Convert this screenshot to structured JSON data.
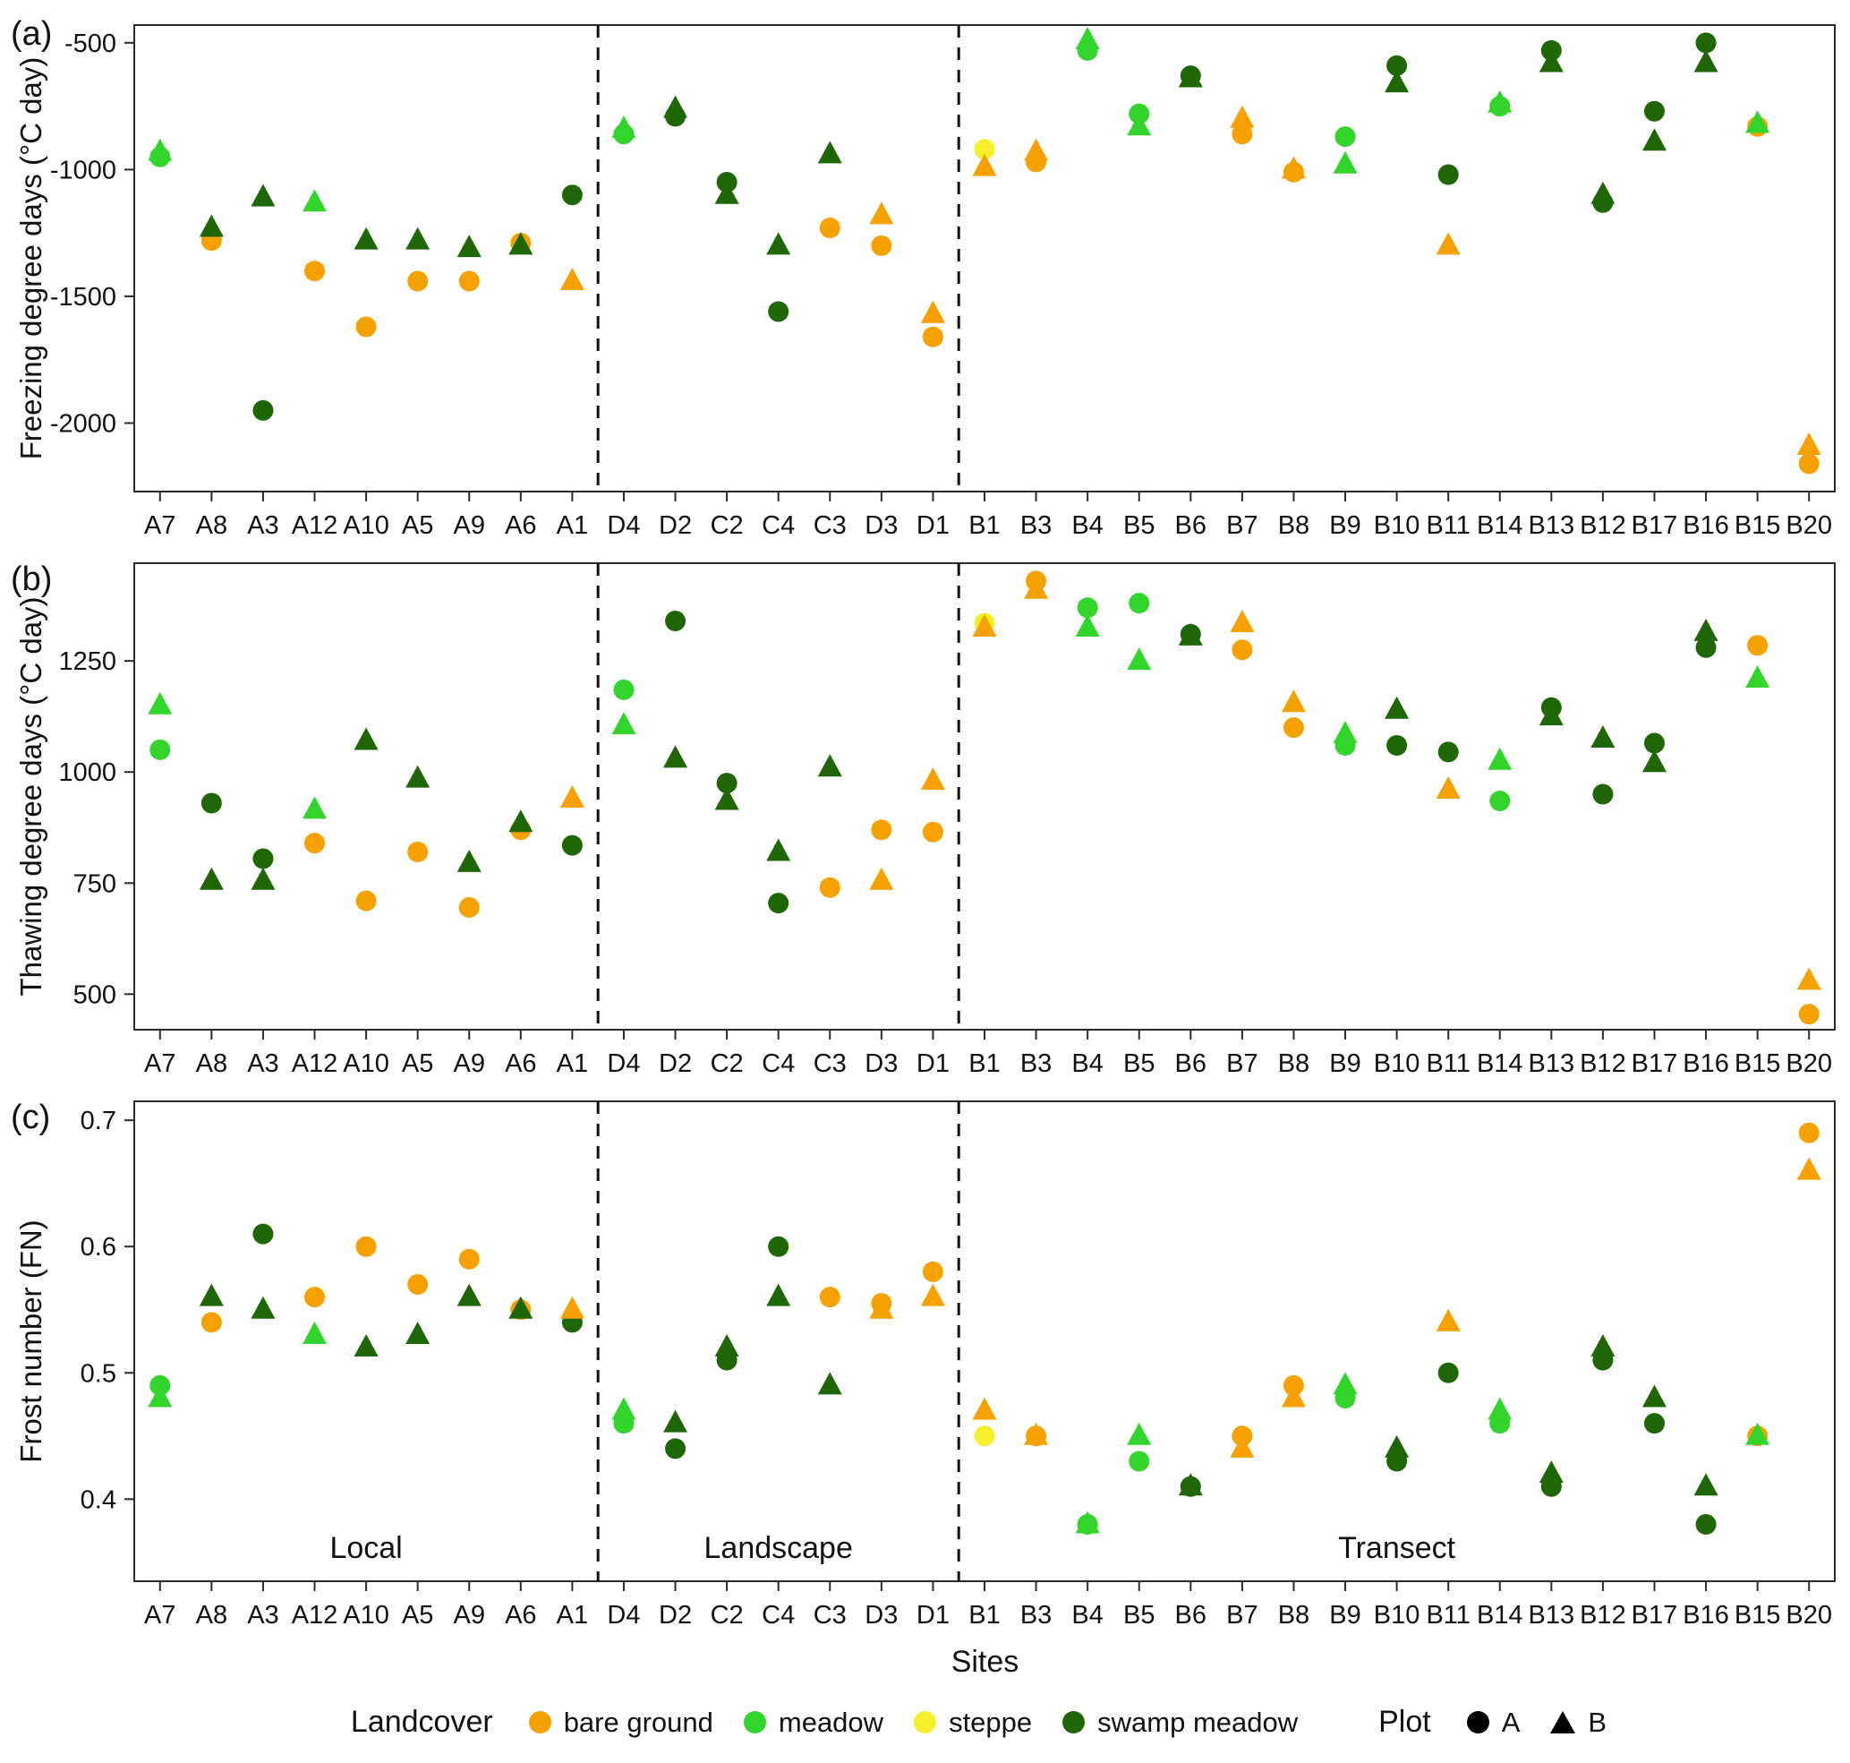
{
  "figure": {
    "xlabel": "Sites",
    "sites": [
      "A7",
      "A8",
      "A3",
      "A12",
      "A10",
      "A5",
      "A9",
      "A6",
      "A1",
      "D4",
      "D2",
      "C2",
      "C4",
      "C3",
      "D3",
      "D1",
      "B1",
      "B3",
      "B4",
      "B5",
      "B6",
      "B7",
      "B8",
      "B9",
      "B10",
      "B11",
      "B14",
      "B13",
      "B12",
      "B17",
      "B16",
      "B15",
      "B20"
    ],
    "separators_after": [
      "A1",
      "D1"
    ],
    "groups": [
      {
        "label": "Local",
        "from": 0,
        "to": 8
      },
      {
        "label": "Landscape",
        "from": 9,
        "to": 15
      },
      {
        "label": "Transect",
        "from": 16,
        "to": 32
      }
    ],
    "landcover_codes": {
      "bg": "bare ground",
      "m": "meadow",
      "st": "steppe",
      "sm": "swamp meadow"
    },
    "colors": {
      "bare ground": "#F5A100",
      "meadow": "#33D42C",
      "steppe": "#F5F02B",
      "swamp meadow": "#1E6606"
    },
    "legend": {
      "landcover_title": "Landcover",
      "landcover_items": [
        "bare ground",
        "meadow",
        "steppe",
        "swamp meadow"
      ],
      "plot_title": "Plot",
      "plot_items": [
        {
          "label": "A",
          "shape": "circle"
        },
        {
          "label": "B",
          "shape": "triangle"
        }
      ]
    }
  },
  "point_format": [
    "site",
    "plot",
    "landcover_code",
    "value"
  ],
  "chart_data": [
    {
      "type": "scatter",
      "id": "a",
      "tag": "(a)",
      "ylabel": "Freezing degree days (°C day)",
      "yticks": [
        -500,
        -1000,
        -1500,
        -2000
      ],
      "ytick_labels": [
        "-500",
        "-1000",
        "-1500",
        "-2000"
      ],
      "ylim": [
        -2270,
        -430
      ],
      "group_labels": false,
      "points": [
        [
          "A7",
          "A",
          "m",
          -950
        ],
        [
          "A7",
          "B",
          "m",
          -930
        ],
        [
          "A8",
          "A",
          "bg",
          -1280
        ],
        [
          "A8",
          "B",
          "sm",
          -1230
        ],
        [
          "A3",
          "A",
          "sm",
          -1950
        ],
        [
          "A3",
          "B",
          "sm",
          -1110
        ],
        [
          "A12",
          "A",
          "bg",
          -1400
        ],
        [
          "A12",
          "B",
          "m",
          -1130
        ],
        [
          "A10",
          "A",
          "bg",
          -1620
        ],
        [
          "A10",
          "B",
          "sm",
          -1280
        ],
        [
          "A5",
          "A",
          "bg",
          -1440
        ],
        [
          "A5",
          "B",
          "sm",
          -1280
        ],
        [
          "A9",
          "A",
          "bg",
          -1440
        ],
        [
          "A9",
          "B",
          "sm",
          -1310
        ],
        [
          "A6",
          "A",
          "bg",
          -1290
        ],
        [
          "A6",
          "B",
          "sm",
          -1300
        ],
        [
          "A1",
          "A",
          "sm",
          -1100
        ],
        [
          "A1",
          "B",
          "bg",
          -1440
        ],
        [
          "D4",
          "A",
          "m",
          -860
        ],
        [
          "D4",
          "B",
          "m",
          -840
        ],
        [
          "D2",
          "A",
          "sm",
          -790
        ],
        [
          "D2",
          "B",
          "sm",
          -760
        ],
        [
          "C2",
          "A",
          "sm",
          -1050
        ],
        [
          "C2",
          "B",
          "sm",
          -1100
        ],
        [
          "C4",
          "A",
          "sm",
          -1560
        ],
        [
          "C4",
          "B",
          "sm",
          -1300
        ],
        [
          "C3",
          "A",
          "bg",
          -1230
        ],
        [
          "C3",
          "B",
          "sm",
          -940
        ],
        [
          "D3",
          "A",
          "bg",
          -1300
        ],
        [
          "D3",
          "B",
          "bg",
          -1180
        ],
        [
          "D1",
          "A",
          "bg",
          -1660
        ],
        [
          "D1",
          "B",
          "bg",
          -1570
        ],
        [
          "B1",
          "A",
          "st",
          -920
        ],
        [
          "B1",
          "B",
          "bg",
          -990
        ],
        [
          "B3",
          "A",
          "bg",
          -970
        ],
        [
          "B3",
          "B",
          "bg",
          -930
        ],
        [
          "B4",
          "A",
          "m",
          -530
        ],
        [
          "B4",
          "B",
          "m",
          -490
        ],
        [
          "B5",
          "A",
          "m",
          -780
        ],
        [
          "B5",
          "B",
          "m",
          -830
        ],
        [
          "B6",
          "A",
          "sm",
          -630
        ],
        [
          "B6",
          "B",
          "sm",
          -640
        ],
        [
          "B7",
          "A",
          "bg",
          -860
        ],
        [
          "B7",
          "B",
          "bg",
          -800
        ],
        [
          "B8",
          "A",
          "bg",
          -1010
        ],
        [
          "B8",
          "B",
          "bg",
          -1000
        ],
        [
          "B9",
          "A",
          "m",
          -870
        ],
        [
          "B9",
          "B",
          "m",
          -980
        ],
        [
          "B10",
          "A",
          "sm",
          -590
        ],
        [
          "B10",
          "B",
          "sm",
          -660
        ],
        [
          "B11",
          "A",
          "sm",
          -1020
        ],
        [
          "B11",
          "B",
          "bg",
          -1300
        ],
        [
          "B14",
          "A",
          "m",
          -750
        ],
        [
          "B14",
          "B",
          "m",
          -740
        ],
        [
          "B13",
          "A",
          "sm",
          -530
        ],
        [
          "B13",
          "B",
          "sm",
          -580
        ],
        [
          "B12",
          "A",
          "sm",
          -1130
        ],
        [
          "B12",
          "B",
          "sm",
          -1100
        ],
        [
          "B17",
          "A",
          "sm",
          -770
        ],
        [
          "B17",
          "B",
          "sm",
          -890
        ],
        [
          "B16",
          "A",
          "sm",
          -500
        ],
        [
          "B16",
          "B",
          "sm",
          -580
        ],
        [
          "B15",
          "A",
          "bg",
          -830
        ],
        [
          "B15",
          "B",
          "m",
          -820
        ],
        [
          "B20",
          "A",
          "bg",
          -2160
        ],
        [
          "B20",
          "B",
          "bg",
          -2090
        ]
      ]
    },
    {
      "type": "scatter",
      "id": "b",
      "tag": "(b)",
      "ylabel": "Thawing degree days (°C day)",
      "yticks": [
        500,
        750,
        1000,
        1250
      ],
      "ytick_labels": [
        "500",
        "750",
        "1000",
        "1250"
      ],
      "ylim": [
        420,
        1470
      ],
      "group_labels": false,
      "points": [
        [
          "A7",
          "A",
          "m",
          1050
        ],
        [
          "A7",
          "B",
          "m",
          1150
        ],
        [
          "A8",
          "A",
          "sm",
          930
        ],
        [
          "A8",
          "B",
          "sm",
          755
        ],
        [
          "A3",
          "A",
          "sm",
          805
        ],
        [
          "A3",
          "B",
          "sm",
          755
        ],
        [
          "A12",
          "A",
          "bg",
          840
        ],
        [
          "A12",
          "B",
          "m",
          915
        ],
        [
          "A10",
          "A",
          "bg",
          710
        ],
        [
          "A10",
          "B",
          "sm",
          1070
        ],
        [
          "A5",
          "A",
          "bg",
          820
        ],
        [
          "A5",
          "B",
          "sm",
          985
        ],
        [
          "A9",
          "A",
          "bg",
          695
        ],
        [
          "A9",
          "B",
          "sm",
          795
        ],
        [
          "A6",
          "A",
          "bg",
          870
        ],
        [
          "A6",
          "B",
          "sm",
          885
        ],
        [
          "A1",
          "A",
          "sm",
          835
        ],
        [
          "A1",
          "B",
          "bg",
          940
        ],
        [
          "D4",
          "A",
          "m",
          1185
        ],
        [
          "D4",
          "B",
          "m",
          1105
        ],
        [
          "D2",
          "A",
          "sm",
          1340
        ],
        [
          "D2",
          "B",
          "sm",
          1030
        ],
        [
          "C2",
          "A",
          "sm",
          975
        ],
        [
          "C2",
          "B",
          "sm",
          935
        ],
        [
          "C4",
          "A",
          "sm",
          705
        ],
        [
          "C4",
          "B",
          "sm",
          820
        ],
        [
          "C3",
          "A",
          "bg",
          740
        ],
        [
          "C3",
          "B",
          "sm",
          1010
        ],
        [
          "D3",
          "A",
          "bg",
          870
        ],
        [
          "D3",
          "B",
          "bg",
          755
        ],
        [
          "D1",
          "A",
          "bg",
          865
        ],
        [
          "D1",
          "B",
          "bg",
          980
        ],
        [
          "B1",
          "A",
          "st",
          1335
        ],
        [
          "B1",
          "B",
          "bg",
          1325
        ],
        [
          "B3",
          "A",
          "bg",
          1430
        ],
        [
          "B3",
          "B",
          "bg",
          1410
        ],
        [
          "B4",
          "A",
          "m",
          1370
        ],
        [
          "B4",
          "B",
          "m",
          1325
        ],
        [
          "B5",
          "A",
          "m",
          1380
        ],
        [
          "B5",
          "B",
          "m",
          1250
        ],
        [
          "B6",
          "A",
          "sm",
          1310
        ],
        [
          "B6",
          "B",
          "sm",
          1305
        ],
        [
          "B7",
          "A",
          "bg",
          1275
        ],
        [
          "B7",
          "B",
          "bg",
          1335
        ],
        [
          "B8",
          "A",
          "bg",
          1100
        ],
        [
          "B8",
          "B",
          "bg",
          1155
        ],
        [
          "B9",
          "A",
          "m",
          1060
        ],
        [
          "B9",
          "B",
          "m",
          1085
        ],
        [
          "B10",
          "A",
          "sm",
          1060
        ],
        [
          "B10",
          "B",
          "sm",
          1140
        ],
        [
          "B11",
          "A",
          "sm",
          1045
        ],
        [
          "B11",
          "B",
          "bg",
          960
        ],
        [
          "B14",
          "A",
          "m",
          935
        ],
        [
          "B14",
          "B",
          "m",
          1025
        ],
        [
          "B13",
          "A",
          "sm",
          1145
        ],
        [
          "B13",
          "B",
          "sm",
          1125
        ],
        [
          "B12",
          "A",
          "sm",
          950
        ],
        [
          "B12",
          "B",
          "sm",
          1075
        ],
        [
          "B17",
          "A",
          "sm",
          1065
        ],
        [
          "B17",
          "B",
          "sm",
          1020
        ],
        [
          "B16",
          "A",
          "sm",
          1280
        ],
        [
          "B16",
          "B",
          "sm",
          1315
        ],
        [
          "B15",
          "A",
          "bg",
          1285
        ],
        [
          "B15",
          "B",
          "m",
          1210
        ],
        [
          "B20",
          "A",
          "bg",
          455
        ],
        [
          "B20",
          "B",
          "bg",
          530
        ]
      ]
    },
    {
      "type": "scatter",
      "id": "c",
      "tag": "(c)",
      "ylabel": "Frost number (FN)",
      "yticks": [
        0.4,
        0.5,
        0.6,
        0.7
      ],
      "ytick_labels": [
        "0.4",
        "0.5",
        "0.6",
        "0.7"
      ],
      "ylim": [
        0.335,
        0.715
      ],
      "group_labels": true,
      "points": [
        [
          "A7",
          "A",
          "m",
          0.49
        ],
        [
          "A7",
          "B",
          "m",
          0.48
        ],
        [
          "A8",
          "A",
          "bg",
          0.54
        ],
        [
          "A8",
          "B",
          "sm",
          0.56
        ],
        [
          "A3",
          "A",
          "sm",
          0.61
        ],
        [
          "A3",
          "B",
          "sm",
          0.55
        ],
        [
          "A12",
          "A",
          "bg",
          0.56
        ],
        [
          "A12",
          "B",
          "m",
          0.53
        ],
        [
          "A10",
          "A",
          "bg",
          0.6
        ],
        [
          "A10",
          "B",
          "sm",
          0.52
        ],
        [
          "A5",
          "A",
          "bg",
          0.57
        ],
        [
          "A5",
          "B",
          "sm",
          0.53
        ],
        [
          "A9",
          "A",
          "bg",
          0.59
        ],
        [
          "A9",
          "B",
          "sm",
          0.56
        ],
        [
          "A6",
          "A",
          "bg",
          0.55
        ],
        [
          "A6",
          "B",
          "sm",
          0.55
        ],
        [
          "A1",
          "A",
          "sm",
          0.54
        ],
        [
          "A1",
          "B",
          "bg",
          0.55
        ],
        [
          "D4",
          "A",
          "m",
          0.46
        ],
        [
          "D4",
          "B",
          "m",
          0.47
        ],
        [
          "D2",
          "A",
          "sm",
          0.44
        ],
        [
          "D2",
          "B",
          "sm",
          0.46
        ],
        [
          "C2",
          "A",
          "sm",
          0.51
        ],
        [
          "C2",
          "B",
          "sm",
          0.52
        ],
        [
          "C4",
          "A",
          "sm",
          0.6
        ],
        [
          "C4",
          "B",
          "sm",
          0.56
        ],
        [
          "C3",
          "A",
          "bg",
          0.56
        ],
        [
          "C3",
          "B",
          "sm",
          0.49
        ],
        [
          "D3",
          "A",
          "bg",
          0.555
        ],
        [
          "D3",
          "B",
          "bg",
          0.55
        ],
        [
          "D1",
          "A",
          "bg",
          0.58
        ],
        [
          "D1",
          "B",
          "bg",
          0.56
        ],
        [
          "B1",
          "A",
          "st",
          0.45
        ],
        [
          "B1",
          "B",
          "bg",
          0.47
        ],
        [
          "B3",
          "A",
          "bg",
          0.45
        ],
        [
          "B3",
          "B",
          "bg",
          0.45
        ],
        [
          "B4",
          "A",
          "m",
          0.38
        ],
        [
          "B4",
          "B",
          "m",
          0.38
        ],
        [
          "B5",
          "A",
          "m",
          0.43
        ],
        [
          "B5",
          "B",
          "m",
          0.45
        ],
        [
          "B6",
          "A",
          "sm",
          0.41
        ],
        [
          "B6",
          "B",
          "sm",
          0.41
        ],
        [
          "B7",
          "A",
          "bg",
          0.45
        ],
        [
          "B7",
          "B",
          "bg",
          0.44
        ],
        [
          "B8",
          "A",
          "bg",
          0.49
        ],
        [
          "B8",
          "B",
          "bg",
          0.48
        ],
        [
          "B9",
          "A",
          "m",
          0.48
        ],
        [
          "B9",
          "B",
          "m",
          0.49
        ],
        [
          "B10",
          "A",
          "sm",
          0.43
        ],
        [
          "B10",
          "B",
          "sm",
          0.44
        ],
        [
          "B11",
          "A",
          "sm",
          0.5
        ],
        [
          "B11",
          "B",
          "bg",
          0.54
        ],
        [
          "B14",
          "A",
          "m",
          0.46
        ],
        [
          "B14",
          "B",
          "m",
          0.47
        ],
        [
          "B13",
          "A",
          "sm",
          0.41
        ],
        [
          "B13",
          "B",
          "sm",
          0.42
        ],
        [
          "B12",
          "A",
          "sm",
          0.51
        ],
        [
          "B12",
          "B",
          "sm",
          0.52
        ],
        [
          "B17",
          "A",
          "sm",
          0.46
        ],
        [
          "B17",
          "B",
          "sm",
          0.48
        ],
        [
          "B16",
          "A",
          "sm",
          0.38
        ],
        [
          "B16",
          "B",
          "sm",
          0.41
        ],
        [
          "B15",
          "A",
          "bg",
          0.45
        ],
        [
          "B15",
          "B",
          "m",
          0.45
        ],
        [
          "B20",
          "A",
          "bg",
          0.69
        ],
        [
          "B20",
          "B",
          "bg",
          0.66
        ]
      ]
    }
  ]
}
